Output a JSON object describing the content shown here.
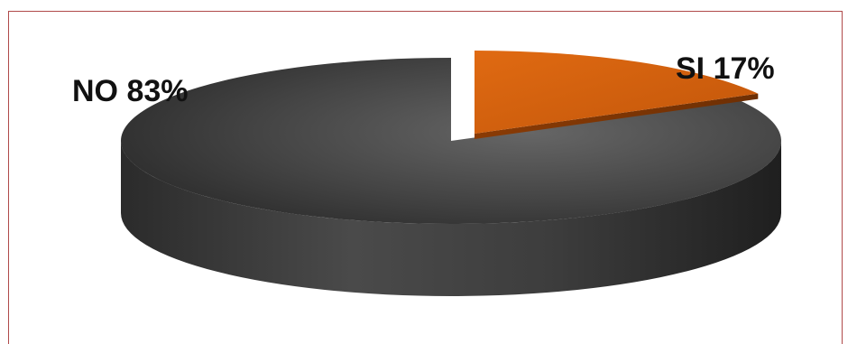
{
  "chart_data": {
    "type": "pie",
    "style": "3d-exploded",
    "slices": [
      {
        "label": "SI",
        "value": 17,
        "display": "SI 17%",
        "color": "#d35f0c"
      },
      {
        "label": "NO",
        "value": 83,
        "display": "NO 83%",
        "color": "#3a3a3a"
      }
    ],
    "legend": "none",
    "title": ""
  },
  "frame": {
    "border_color": "#b04a4a"
  }
}
